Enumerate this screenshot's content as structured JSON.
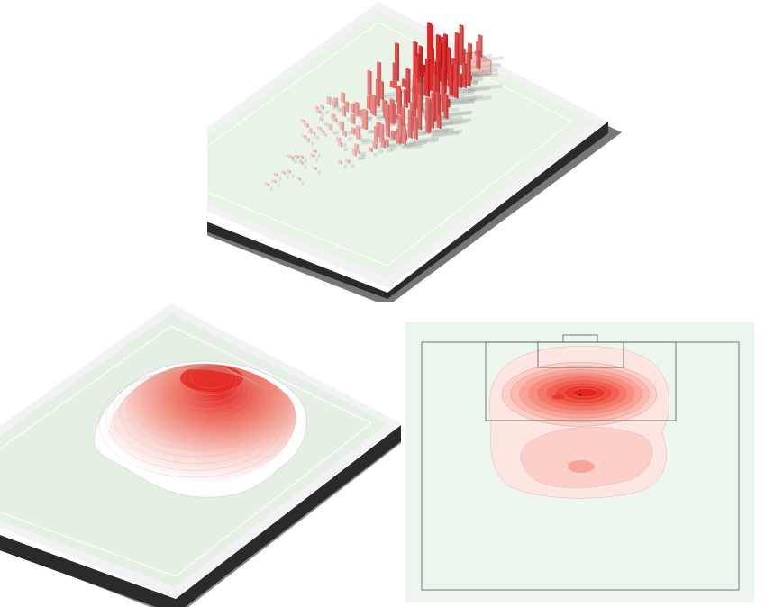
{
  "colors": {
    "pitch": "#e9f3e7",
    "pitch_panel": "#edf6ec",
    "pitch_edge": "#f2f2f4",
    "base_dark": "#2a2a2a",
    "base_shadow": "#8a8a8a",
    "line": "#555555",
    "heat_low": "#fde4df",
    "heat_high": "#e3241f"
  },
  "panels": [
    {
      "kind": "3d-bar-heatmap"
    },
    {
      "kind": "3d-kde-surface"
    },
    {
      "kind": "2d-kde-contour"
    }
  ]
}
